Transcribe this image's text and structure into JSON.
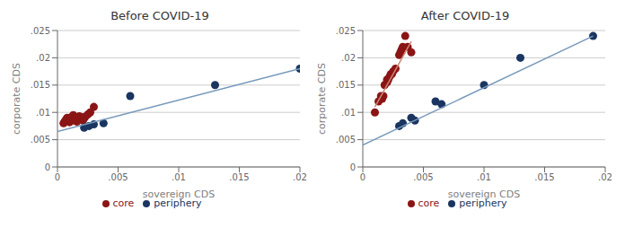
{
  "chart_data": [
    {
      "type": "scatter",
      "title": "Before COVID-19",
      "x_label": "sovereign CDS",
      "y_label": "corporate CDS",
      "xlim": [
        0,
        0.02
      ],
      "ylim": [
        0,
        0.025
      ],
      "xticks": [
        0,
        {
          "value": 0.005,
          "label": ".005"
        },
        {
          "value": 0.01,
          "label": ".01"
        },
        {
          "value": 0.015,
          "label": ".015"
        },
        {
          "value": 0.02,
          "label": ".02"
        }
      ],
      "yticks": [
        0,
        {
          "value": 0.005,
          "label": ".005"
        },
        {
          "value": 0.01,
          "label": ".01"
        },
        {
          "value": 0.015,
          "label": ".015"
        },
        {
          "value": 0.02,
          "label": ".02"
        },
        {
          "value": 0.025,
          "label": ".025"
        }
      ],
      "grid": "y",
      "legend": "bottom",
      "series": [
        {
          "name": "core",
          "type": "scatter",
          "color": "#8b1515",
          "x": [
            0.0005,
            0.0006,
            0.0007,
            0.0008,
            0.0009,
            0.001,
            0.0011,
            0.0012,
            0.0013,
            0.0014,
            0.0015,
            0.0016,
            0.0017,
            0.0018,
            0.0019,
            0.002,
            0.0021,
            0.0022,
            0.0023,
            0.0025,
            0.0027,
            0.003
          ],
          "values": [
            0.008,
            0.0083,
            0.0087,
            0.009,
            0.0088,
            0.0082,
            0.009,
            0.0092,
            0.0095,
            0.0085,
            0.0087,
            0.0083,
            0.0088,
            0.0093,
            0.009,
            0.0091,
            0.0085,
            0.0089,
            0.0092,
            0.0096,
            0.01,
            0.011
          ]
        },
        {
          "name": "periphery",
          "type": "scatter",
          "color": "#1a3560",
          "x": [
            0.0022,
            0.0026,
            0.003,
            0.0038,
            0.006,
            0.013,
            0.02
          ],
          "values": [
            0.0072,
            0.0075,
            0.0078,
            0.008,
            0.013,
            0.015,
            0.018
          ]
        },
        {
          "type": "line",
          "color": "#7799bb",
          "x": [
            0.0,
            0.02
          ],
          "values": [
            0.0065,
            0.018
          ]
        }
      ]
    },
    {
      "type": "scatter",
      "title": "After COVID-19",
      "x_label": "sovereign CDS",
      "y_label": "corporate CDS",
      "xlim": [
        0,
        0.02
      ],
      "ylim": [
        0,
        0.025
      ],
      "xticks": [
        0,
        {
          "value": 0.005,
          "label": ".005"
        },
        {
          "value": 0.01,
          "label": ".01"
        },
        {
          "value": 0.015,
          "label": ".015"
        },
        {
          "value": 0.02,
          "label": ".02"
        }
      ],
      "yticks": [
        0,
        {
          "value": 0.005,
          "label": ".005"
        },
        {
          "value": 0.01,
          "label": ".01"
        },
        {
          "value": 0.015,
          "label": ".015"
        },
        {
          "value": 0.02,
          "label": ".02"
        },
        {
          "value": 0.025,
          "label": ".025"
        }
      ],
      "grid": "y",
      "legend": "bottom",
      "series": [
        {
          "name": "core",
          "type": "scatter",
          "color": "#8b1515",
          "x": [
            0.001,
            0.0013,
            0.0015,
            0.0016,
            0.0017,
            0.0018,
            0.002,
            0.002,
            0.0021,
            0.0022,
            0.0023,
            0.0024,
            0.0025,
            0.0027,
            0.003,
            0.0031,
            0.0032,
            0.0033,
            0.0035,
            0.0037,
            0.004
          ],
          "values": [
            0.01,
            0.012,
            0.013,
            0.0125,
            0.013,
            0.015,
            0.0155,
            0.016,
            0.016,
            0.0165,
            0.017,
            0.017,
            0.0175,
            0.018,
            0.0205,
            0.021,
            0.0215,
            0.022,
            0.024,
            0.022,
            0.021
          ]
        },
        {
          "name": "periphery",
          "type": "scatter",
          "color": "#1a3560",
          "x": [
            0.003,
            0.0033,
            0.004,
            0.0043,
            0.006,
            0.0065,
            0.01,
            0.013,
            0.019
          ],
          "values": [
            0.0075,
            0.008,
            0.009,
            0.0085,
            0.012,
            0.0115,
            0.015,
            0.02,
            0.024
          ]
        },
        {
          "type": "line",
          "color": "#7799bb",
          "x": [
            0.0,
            0.019
          ],
          "values": [
            0.004,
            0.024
          ]
        },
        {
          "type": "line",
          "color": "#cc8877",
          "x": [
            0.001,
            0.004
          ],
          "values": [
            0.011,
            0.023
          ]
        }
      ]
    }
  ]
}
